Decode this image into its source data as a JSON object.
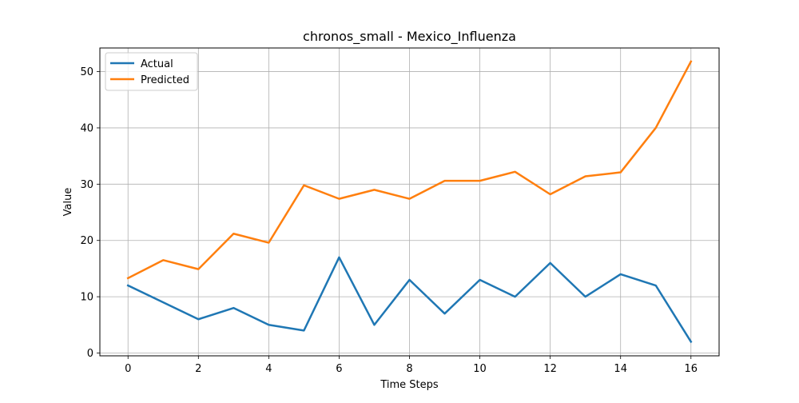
{
  "chart_data": {
    "type": "line",
    "title": "chronos_small - Mexico_Influenza",
    "xlabel": "Time Steps",
    "ylabel": "Value",
    "x": [
      0,
      1,
      2,
      3,
      4,
      5,
      6,
      7,
      8,
      9,
      10,
      11,
      12,
      13,
      14,
      15,
      16
    ],
    "xlim": [
      -0.8,
      16.8
    ],
    "ylim": [
      -0.5,
      54.2
    ],
    "xticks": [
      0,
      2,
      4,
      6,
      8,
      10,
      12,
      14,
      16
    ],
    "yticks": [
      0,
      10,
      20,
      30,
      40,
      50
    ],
    "grid": true,
    "legend_position": "top-left",
    "series": [
      {
        "name": "Actual",
        "color": "#1f77b4",
        "values": [
          12,
          9,
          6,
          8,
          5,
          4,
          17,
          5,
          13,
          7,
          13,
          10,
          16,
          10,
          14,
          12,
          2
        ]
      },
      {
        "name": "Predicted",
        "color": "#ff7f0e",
        "values": [
          13.3,
          16.5,
          14.9,
          21.2,
          19.6,
          29.8,
          27.4,
          29.0,
          27.4,
          30.6,
          30.6,
          32.2,
          28.2,
          31.4,
          32.1,
          40.0,
          51.8
        ]
      }
    ]
  }
}
